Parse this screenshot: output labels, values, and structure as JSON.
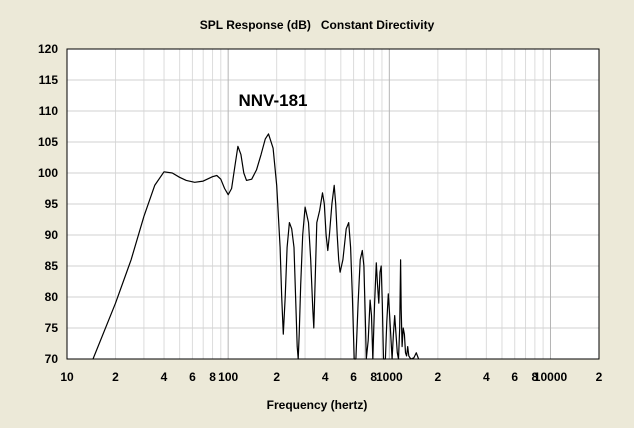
{
  "chart_data": {
    "type": "line",
    "title": "SPL Response (dB)   Constant Directivity",
    "xlabel": "Frequency (hertz)",
    "ylabel": "",
    "xscale": "log",
    "xlim": [
      10,
      20000
    ],
    "ylim": [
      70,
      120
    ],
    "grid": true,
    "legend": "none",
    "annotation": "NNV-181",
    "y_ticks": [
      "70",
      "75",
      "80",
      "85",
      "90",
      "95",
      "100",
      "105",
      "110",
      "115",
      "120"
    ],
    "x_ticks": [
      {
        "value": 10,
        "label": "10"
      },
      {
        "value": 20,
        "label": "2"
      },
      {
        "value": 40,
        "label": "4"
      },
      {
        "value": 60,
        "label": "6"
      },
      {
        "value": 80,
        "label": "8"
      },
      {
        "value": 100,
        "label": "100"
      },
      {
        "value": 200,
        "label": "2"
      },
      {
        "value": 400,
        "label": "4"
      },
      {
        "value": 600,
        "label": "6"
      },
      {
        "value": 800,
        "label": "8"
      },
      {
        "value": 1000,
        "label": "1000"
      },
      {
        "value": 2000,
        "label": "2"
      },
      {
        "value": 4000,
        "label": "4"
      },
      {
        "value": 6000,
        "label": "6"
      },
      {
        "value": 8000,
        "label": "8"
      },
      {
        "value": 10000,
        "label": "10000"
      },
      {
        "value": 20000,
        "label": "2"
      }
    ],
    "series": [
      {
        "color": "#000000",
        "points": [
          [
            14.5,
            70
          ],
          [
            20,
            79
          ],
          [
            25,
            86
          ],
          [
            30,
            93
          ],
          [
            35,
            98
          ],
          [
            40,
            100.2
          ],
          [
            45,
            100
          ],
          [
            50,
            99.3
          ],
          [
            55,
            98.8
          ],
          [
            62,
            98.5
          ],
          [
            70,
            98.7
          ],
          [
            80,
            99.4
          ],
          [
            85,
            99.6
          ],
          [
            90,
            99
          ],
          [
            95,
            97.5
          ],
          [
            100,
            96.5
          ],
          [
            105,
            97.5
          ],
          [
            110,
            101
          ],
          [
            115,
            104.3
          ],
          [
            120,
            103
          ],
          [
            125,
            100
          ],
          [
            130,
            98.8
          ],
          [
            140,
            99
          ],
          [
            150,
            100.5
          ],
          [
            160,
            103
          ],
          [
            170,
            105.5
          ],
          [
            178,
            106.3
          ],
          [
            190,
            104
          ],
          [
            200,
            98
          ],
          [
            210,
            88
          ],
          [
            215,
            80
          ],
          [
            220,
            74
          ],
          [
            226,
            80
          ],
          [
            232,
            88
          ],
          [
            240,
            92
          ],
          [
            248,
            91
          ],
          [
            256,
            88
          ],
          [
            262,
            80
          ],
          [
            268,
            72
          ],
          [
            272,
            70
          ],
          [
            276,
            74
          ],
          [
            282,
            82
          ],
          [
            290,
            90
          ],
          [
            300,
            94.5
          ],
          [
            315,
            92
          ],
          [
            325,
            86
          ],
          [
            335,
            78
          ],
          [
            340,
            75
          ],
          [
            348,
            84
          ],
          [
            355,
            92
          ],
          [
            370,
            94
          ],
          [
            385,
            96.8
          ],
          [
            395,
            95
          ],
          [
            405,
            90
          ],
          [
            415,
            87.5
          ],
          [
            425,
            90
          ],
          [
            440,
            95
          ],
          [
            455,
            98
          ],
          [
            465,
            95
          ],
          [
            475,
            90
          ],
          [
            485,
            86
          ],
          [
            495,
            84
          ],
          [
            515,
            86
          ],
          [
            540,
            91
          ],
          [
            560,
            92
          ],
          [
            575,
            88
          ],
          [
            590,
            80
          ],
          [
            605,
            70
          ],
          [
            620,
            70
          ],
          [
            640,
            79
          ],
          [
            660,
            86
          ],
          [
            680,
            87.5
          ],
          [
            695,
            85
          ],
          [
            710,
            76
          ],
          [
            720,
            70
          ],
          [
            740,
            73
          ],
          [
            760,
            79.5
          ],
          [
            775,
            77
          ],
          [
            790,
            70
          ],
          [
            810,
            79
          ],
          [
            830,
            85.5
          ],
          [
            845,
            82
          ],
          [
            860,
            79
          ],
          [
            875,
            84
          ],
          [
            890,
            85
          ],
          [
            905,
            79
          ],
          [
            920,
            70
          ],
          [
            945,
            70
          ],
          [
            965,
            76
          ],
          [
            985,
            80.5
          ],
          [
            1000,
            78
          ],
          [
            1020,
            74
          ],
          [
            1040,
            70
          ],
          [
            1060,
            74
          ],
          [
            1080,
            77
          ],
          [
            1100,
            74
          ],
          [
            1120,
            71
          ],
          [
            1140,
            70
          ],
          [
            1160,
            75
          ],
          [
            1175,
            86
          ],
          [
            1185,
            78
          ],
          [
            1200,
            72
          ],
          [
            1220,
            75
          ],
          [
            1240,
            74
          ],
          [
            1260,
            71
          ],
          [
            1280,
            70.5
          ],
          [
            1300,
            72
          ],
          [
            1320,
            70.5
          ],
          [
            1360,
            70
          ],
          [
            1420,
            70.2
          ],
          [
            1470,
            71
          ],
          [
            1520,
            70
          ]
        ]
      }
    ]
  }
}
